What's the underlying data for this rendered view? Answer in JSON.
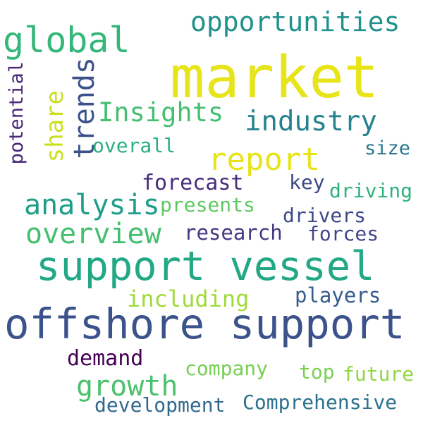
{
  "words": [
    {
      "id": "market",
      "text": "market",
      "color": "#e7e419"
    },
    {
      "id": "offshore-support",
      "text": "offshore support",
      "color": "#3b528b"
    },
    {
      "id": "support-vessel",
      "text": "support vessel",
      "color": "#22a884"
    },
    {
      "id": "global",
      "text": "global",
      "color": "#35b779"
    },
    {
      "id": "opportunities",
      "text": "opportunities",
      "color": "#21918c"
    },
    {
      "id": "trends",
      "text": "trends",
      "color": "#3b528b"
    },
    {
      "id": "insights",
      "text": "Insights",
      "color": "#44bf70"
    },
    {
      "id": "industry",
      "text": "industry",
      "color": "#26828e"
    },
    {
      "id": "report",
      "text": "report",
      "color": "#e7e419"
    },
    {
      "id": "share",
      "text": "share",
      "color": "#c8e020"
    },
    {
      "id": "potential",
      "text": "potential",
      "color": "#482878"
    },
    {
      "id": "overall",
      "text": "overall",
      "color": "#2ab07f"
    },
    {
      "id": "size",
      "text": "size",
      "color": "#2a788e"
    },
    {
      "id": "analysis",
      "text": "analysis",
      "color": "#1f9e89"
    },
    {
      "id": "forecast",
      "text": "forecast",
      "color": "#472d7b"
    },
    {
      "id": "key",
      "text": "key",
      "color": "#3e4a89"
    },
    {
      "id": "driving",
      "text": "driving",
      "color": "#2db27d"
    },
    {
      "id": "presents",
      "text": "presents",
      "color": "#5ec962"
    },
    {
      "id": "drivers",
      "text": "drivers",
      "color": "#3e4989"
    },
    {
      "id": "overview",
      "text": "overview",
      "color": "#44bf70"
    },
    {
      "id": "research",
      "text": "research",
      "color": "#443983"
    },
    {
      "id": "forces",
      "text": "forces",
      "color": "#414487"
    },
    {
      "id": "including",
      "text": "including",
      "color": "#a0da39"
    },
    {
      "id": "players",
      "text": "players",
      "color": "#365c8d"
    },
    {
      "id": "demand",
      "text": "demand",
      "color": "#440154"
    },
    {
      "id": "growth",
      "text": "growth",
      "color": "#4ac16d"
    },
    {
      "id": "company",
      "text": "company",
      "color": "#75d054"
    },
    {
      "id": "top",
      "text": "top",
      "color": "#7ad151"
    },
    {
      "id": "future",
      "text": "future",
      "color": "#8fd744"
    },
    {
      "id": "development",
      "text": "development",
      "color": "#31688e"
    },
    {
      "id": "comprehensive",
      "text": "Comprehensive",
      "color": "#2c728e"
    }
  ]
}
